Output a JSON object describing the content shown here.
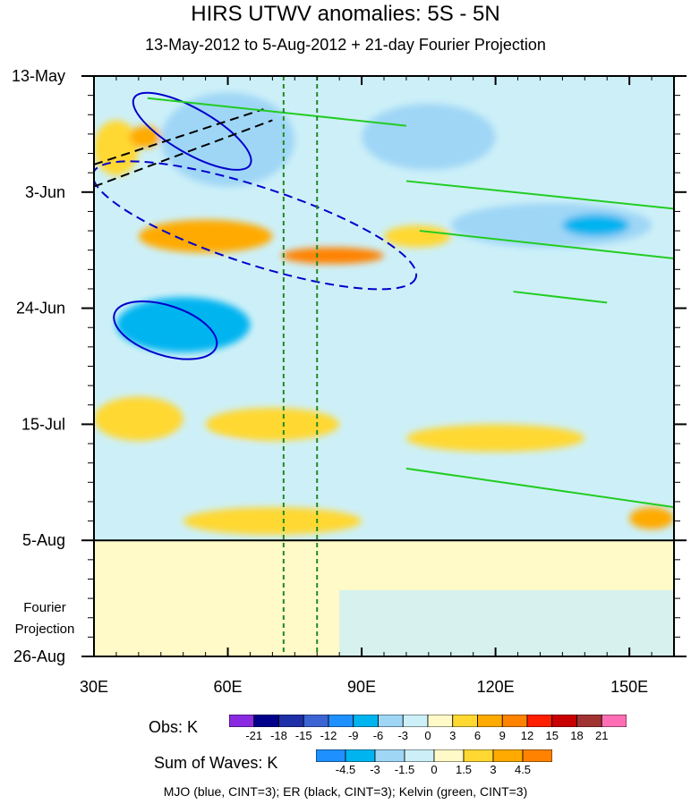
{
  "chart_data": {
    "type": "heatmap",
    "title": "HIRS UTWV anomalies: 5S - 5N",
    "subtitle": "13-May-2012 to 5-Aug-2012 + 21-day Fourier Projection",
    "x_ticks": [
      {
        "value": 30,
        "label": "30E"
      },
      {
        "value": 60,
        "label": "60E"
      },
      {
        "value": 90,
        "label": "90E"
      },
      {
        "value": 120,
        "label": "120E"
      },
      {
        "value": 150,
        "label": "150E"
      }
    ],
    "xlim": [
      30,
      160
    ],
    "y_ticks": [
      {
        "day": 0,
        "label": "13-May"
      },
      {
        "day": 21,
        "label": "3-Jun"
      },
      {
        "day": 42,
        "label": "24-Jun"
      },
      {
        "day": 63,
        "label": "15-Jul"
      },
      {
        "day": 84,
        "label": "5-Aug"
      },
      {
        "day": 105,
        "label": "26-Aug"
      }
    ],
    "ylim": [
      0,
      105
    ],
    "projection_start_day": 84,
    "projection_label_line1": "Fourier",
    "projection_label_line2": "Projection",
    "reference_longitudes": [
      72.5,
      80
    ],
    "obs_colorbar": {
      "title": "Obs: K",
      "levels": [
        "-21",
        "-18",
        "-15",
        "-12",
        "-9",
        "-6",
        "-3",
        "0",
        "3",
        "6",
        "9",
        "12",
        "15",
        "18",
        "21"
      ],
      "colors": [
        "#8a2be2",
        "#00008b",
        "#1e2fa8",
        "#3c64d2",
        "#1e90ff",
        "#00b4f0",
        "#9fd6f6",
        "#cdf0f8",
        "#fffac8",
        "#ffd832",
        "#ffaa00",
        "#ff8200",
        "#ff1e00",
        "#c80000",
        "#a03232",
        "#ff6eb4"
      ]
    },
    "waves_colorbar": {
      "title": "Sum of Waves: K",
      "levels": [
        "-4.5",
        "-3",
        "-1.5",
        "0",
        "1.5",
        "3",
        "4.5"
      ],
      "colors": [
        "#1e90ff",
        "#00b4f0",
        "#9fd6f6",
        "#cdf0f8",
        "#fffac8",
        "#ffd832",
        "#ffaa00",
        "#ff8200"
      ]
    },
    "legend_note": "MJO (blue, CINT=3); ER (black, CINT=3); Kelvin (green, CINT=3)",
    "obs_patches": [
      {
        "lon": [
          30,
          40
        ],
        "day": [
          8,
          18
        ],
        "value": 4
      },
      {
        "lon": [
          38,
          45
        ],
        "day": [
          9,
          13
        ],
        "value": 6
      },
      {
        "lon": [
          45,
          75
        ],
        "day": [
          3,
          20
        ],
        "value": -6
      },
      {
        "lon": [
          90,
          120
        ],
        "day": [
          5,
          17
        ],
        "value": -4
      },
      {
        "lon": [
          120,
          160
        ],
        "day": [
          3,
          10
        ],
        "value": -3
      },
      {
        "lon": [
          40,
          70
        ],
        "day": [
          26,
          32
        ],
        "value": 6
      },
      {
        "lon": [
          72,
          95
        ],
        "day": [
          31,
          34
        ],
        "value": 9
      },
      {
        "lon": [
          95,
          110
        ],
        "day": [
          27,
          31
        ],
        "value": 4
      },
      {
        "lon": [
          110,
          155
        ],
        "day": [
          23,
          31
        ],
        "value": -4
      },
      {
        "lon": [
          135,
          150
        ],
        "day": [
          25,
          29
        ],
        "value": -7
      },
      {
        "lon": [
          35,
          65
        ],
        "day": [
          40,
          50
        ],
        "value": -7
      },
      {
        "lon": [
          65,
          115
        ],
        "day": [
          44,
          56
        ],
        "value": -3
      },
      {
        "lon": [
          120,
          155
        ],
        "day": [
          42,
          50
        ],
        "value": -3
      },
      {
        "lon": [
          30,
          50
        ],
        "day": [
          58,
          66
        ],
        "value": 5
      },
      {
        "lon": [
          55,
          85
        ],
        "day": [
          60,
          66
        ],
        "value": 3
      },
      {
        "lon": [
          100,
          140
        ],
        "day": [
          63,
          68
        ],
        "value": 3
      },
      {
        "lon": [
          40,
          70
        ],
        "day": [
          66,
          74
        ],
        "value": -3
      },
      {
        "lon": [
          80,
          150
        ],
        "day": [
          70,
          78
        ],
        "value": -3
      },
      {
        "lon": [
          150,
          160
        ],
        "day": [
          78,
          82
        ],
        "value": 6
      },
      {
        "lon": [
          50,
          90
        ],
        "day": [
          78,
          83
        ],
        "value": 4
      }
    ],
    "wave_contours": [
      {
        "wave": "MJO",
        "color": "#0000cc",
        "dashed": false,
        "cx": 52,
        "cy": 10,
        "rx": 15,
        "ry": 4,
        "angle_deg": 30
      },
      {
        "wave": "MJO",
        "color": "#0000cc",
        "dashed": true,
        "cx": 66,
        "cy": 27,
        "rx": 38,
        "ry": 7,
        "angle_deg": 18
      },
      {
        "wave": "MJO",
        "color": "#0000cc",
        "dashed": false,
        "cx": 46,
        "cy": 46,
        "rx": 12,
        "ry": 4.5,
        "angle_deg": 18
      },
      {
        "wave": "ER",
        "color": "#000000",
        "dashed": true,
        "line": [
          [
            30,
            16
          ],
          [
            68,
            6
          ]
        ]
      },
      {
        "wave": "ER",
        "color": "#000000",
        "dashed": true,
        "line": [
          [
            30,
            20
          ],
          [
            70,
            8
          ]
        ]
      },
      {
        "wave": "Kelvin",
        "color": "#22cc22",
        "dashed": false,
        "line": [
          [
            42,
            4
          ],
          [
            100,
            9
          ]
        ]
      },
      {
        "wave": "Kelvin",
        "color": "#22cc22",
        "dashed": false,
        "line": [
          [
            100,
            19
          ],
          [
            160,
            24
          ]
        ]
      },
      {
        "wave": "Kelvin",
        "color": "#22cc22",
        "dashed": false,
        "line": [
          [
            103,
            28
          ],
          [
            160,
            33
          ]
        ]
      },
      {
        "wave": "Kelvin",
        "color": "#22cc22",
        "dashed": false,
        "line": [
          [
            124,
            39
          ],
          [
            145,
            41
          ]
        ]
      },
      {
        "wave": "Kelvin",
        "color": "#22cc22",
        "dashed": false,
        "line": [
          [
            100,
            71
          ],
          [
            160,
            78
          ]
        ]
      }
    ]
  }
}
